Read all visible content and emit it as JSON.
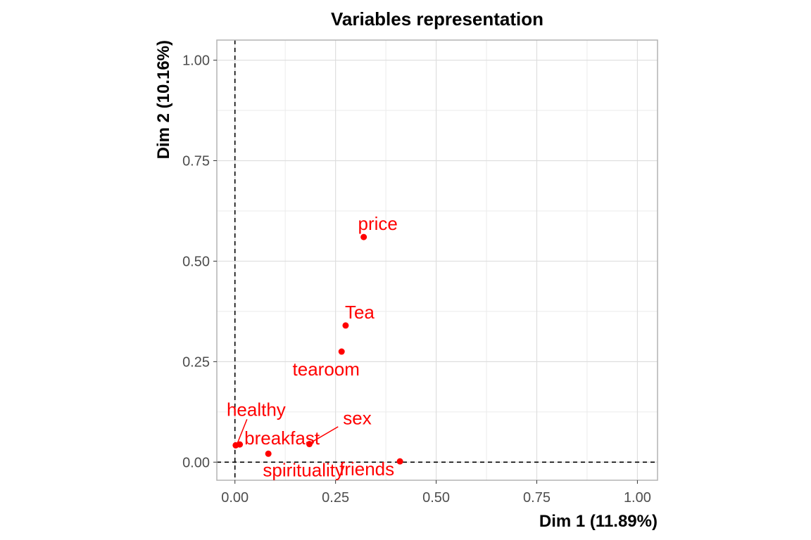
{
  "chart_data": {
    "type": "scatter",
    "title": "Variables representation",
    "xlabel": "Dim 1 (11.89%)",
    "ylabel": "Dim 2 (10.16%)",
    "xlim": [
      -0.045,
      1.05
    ],
    "ylim": [
      -0.045,
      1.05
    ],
    "x_ticks": [
      "0.00",
      "0.25",
      "0.50",
      "0.75",
      "1.00"
    ],
    "y_ticks": [
      "0.00",
      "0.25",
      "0.50",
      "0.75",
      "1.00"
    ],
    "grid": true,
    "reference_lines": {
      "x": 0,
      "y": 0,
      "style": "dashed"
    },
    "point_color": "#ff0000",
    "points": [
      {
        "label": "price",
        "x": 0.32,
        "y": 0.56
      },
      {
        "label": "Tea",
        "x": 0.275,
        "y": 0.34
      },
      {
        "label": "tearoom",
        "x": 0.265,
        "y": 0.275
      },
      {
        "label": "healthy",
        "x": 0.002,
        "y": 0.042
      },
      {
        "label": "breakfast",
        "x": 0.012,
        "y": 0.044
      },
      {
        "label": "sex",
        "x": 0.185,
        "y": 0.045
      },
      {
        "label": "spirituality",
        "x": 0.083,
        "y": 0.021
      },
      {
        "label": "friends",
        "x": 0.41,
        "y": 0.002
      }
    ]
  }
}
